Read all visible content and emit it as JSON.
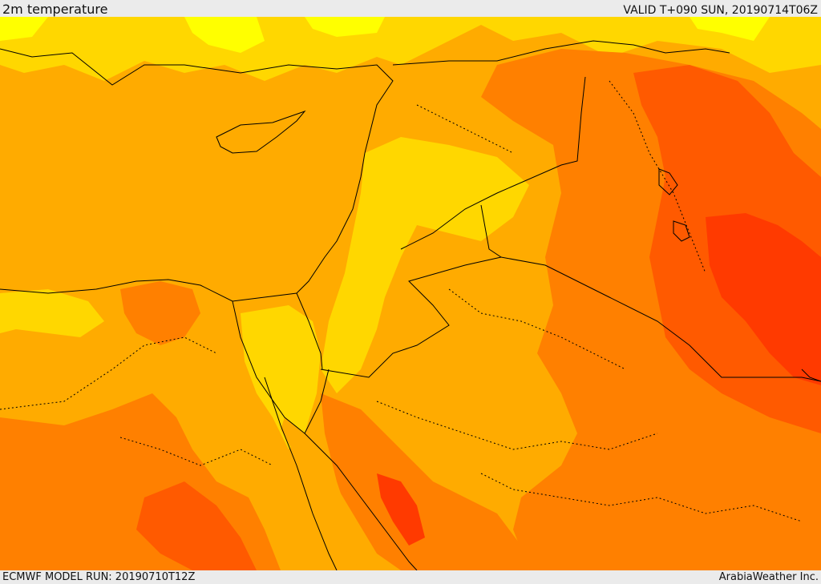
{
  "header": {
    "title": "2m temperature",
    "valid": "VALID T+090 SUN, 20190714T06Z"
  },
  "footer": {
    "model_run": "ECMWF MODEL RUN: 20190710T12Z",
    "credit": "ArabiaWeather Inc."
  },
  "colors": {
    "sea_base": "#ffab00",
    "band_yellow_light": "#ffff00",
    "band_yellow": "#ffd700",
    "band_orange_light": "#ffab00",
    "band_orange": "#ff8000",
    "band_orange_dark": "#ff5a00",
    "band_red": "#ff3a00",
    "border_line": "#000000"
  }
}
